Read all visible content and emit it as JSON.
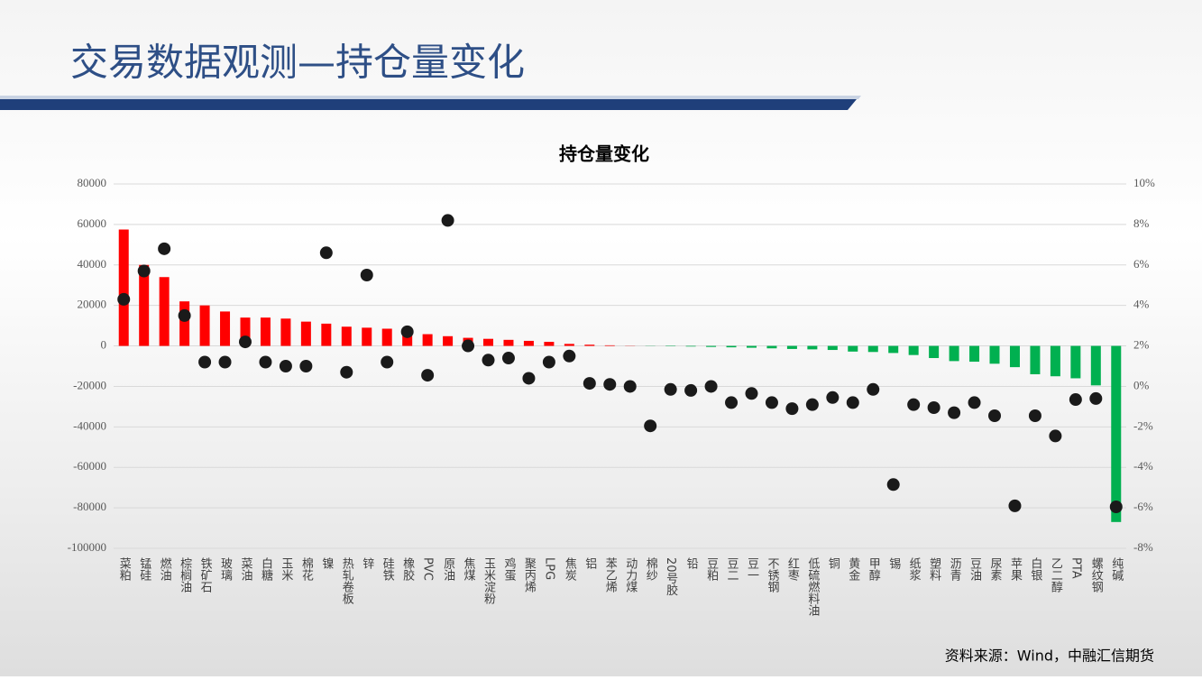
{
  "header": {
    "title": "交易数据观测—持仓量变化"
  },
  "chart_data": {
    "type": "bar",
    "title": "持仓量变化",
    "categories": [
      "菜粕",
      "锰硅",
      "燃油",
      "棕榈油",
      "铁矿石",
      "玻璃",
      "菜油",
      "白糖",
      "玉米",
      "棉花",
      "镍",
      "热轧卷板",
      "锌",
      "硅铁",
      "橡胶",
      "PVC",
      "原油",
      "焦煤",
      "玉米淀粉",
      "鸡蛋",
      "聚丙烯",
      "LPG",
      "焦炭",
      "铝",
      "苯乙烯",
      "动力煤",
      "棉纱",
      "20号胶",
      "铅",
      "豆粕",
      "豆二",
      "豆一",
      "不锈钢",
      "红枣",
      "低硫燃料油",
      "铜",
      "黄金",
      "甲醇",
      "锡",
      "纸浆",
      "塑料",
      "沥青",
      "豆油",
      "尿素",
      "苹果",
      "白银",
      "乙二醇",
      "PTA",
      "螺纹钢",
      "纯碱"
    ],
    "series": [
      {
        "type": "bar",
        "positive_color": "#ff0000",
        "negative_color": "#00b050",
        "values": [
          57500,
          40000,
          34000,
          22000,
          20000,
          17000,
          14000,
          14000,
          13500,
          12000,
          11000,
          9500,
          9000,
          8500,
          7500,
          5800,
          4800,
          4000,
          3500,
          3000,
          2500,
          2000,
          1000,
          600,
          300,
          100,
          -100,
          -200,
          -300,
          -500,
          -700,
          -900,
          -1200,
          -1500,
          -1700,
          -2000,
          -2800,
          -3000,
          -3500,
          -4500,
          -6000,
          -7500,
          -7800,
          -8800,
          -10500,
          -14000,
          -15000,
          -16000,
          -19500,
          -87000
        ]
      },
      {
        "type": "scatter",
        "axis": "y2",
        "color": "#1a1a1a",
        "values": [
          4.3,
          5.7,
          6.8,
          3.5,
          1.2,
          1.2,
          2.2,
          1.2,
          1.0,
          1.0,
          6.6,
          0.7,
          5.5,
          1.2,
          2.7,
          0.55,
          8.2,
          2.0,
          1.3,
          1.4,
          0.4,
          1.2,
          1.5,
          0.15,
          0.1,
          0,
          -1.95,
          -0.15,
          -0.2,
          0,
          -0.8,
          -0.35,
          -0.8,
          -1.1,
          -0.9,
          -0.55,
          -0.8,
          -0.15,
          -4.85,
          -0.9,
          -1.05,
          -1.3,
          -0.8,
          -1.45,
          -5.9,
          -1.45,
          -2.45,
          -0.65,
          -0.6,
          -5.95
        ]
      }
    ],
    "ylim": [
      -100000,
      80000
    ],
    "yticks": [
      80000,
      60000,
      40000,
      20000,
      0,
      -20000,
      -40000,
      -60000,
      -80000,
      -100000
    ],
    "y2lim": [
      -8,
      10
    ],
    "y2ticks": [
      {
        "value": 10,
        "label": "10%"
      },
      {
        "value": 8,
        "label": "8%"
      },
      {
        "value": 6,
        "label": "6%"
      },
      {
        "value": 4,
        "label": "4%"
      },
      {
        "value": 2,
        "label": "2%"
      },
      {
        "value": 0,
        "label": "0%"
      },
      {
        "value": -2,
        "label": "-2%"
      },
      {
        "value": -4,
        "label": "-4%"
      },
      {
        "value": -6,
        "label": "-6%"
      },
      {
        "value": -8,
        "label": "-8%"
      }
    ],
    "grid": true
  },
  "footer": {
    "source": "资料来源：Wind，中融汇信期货"
  }
}
